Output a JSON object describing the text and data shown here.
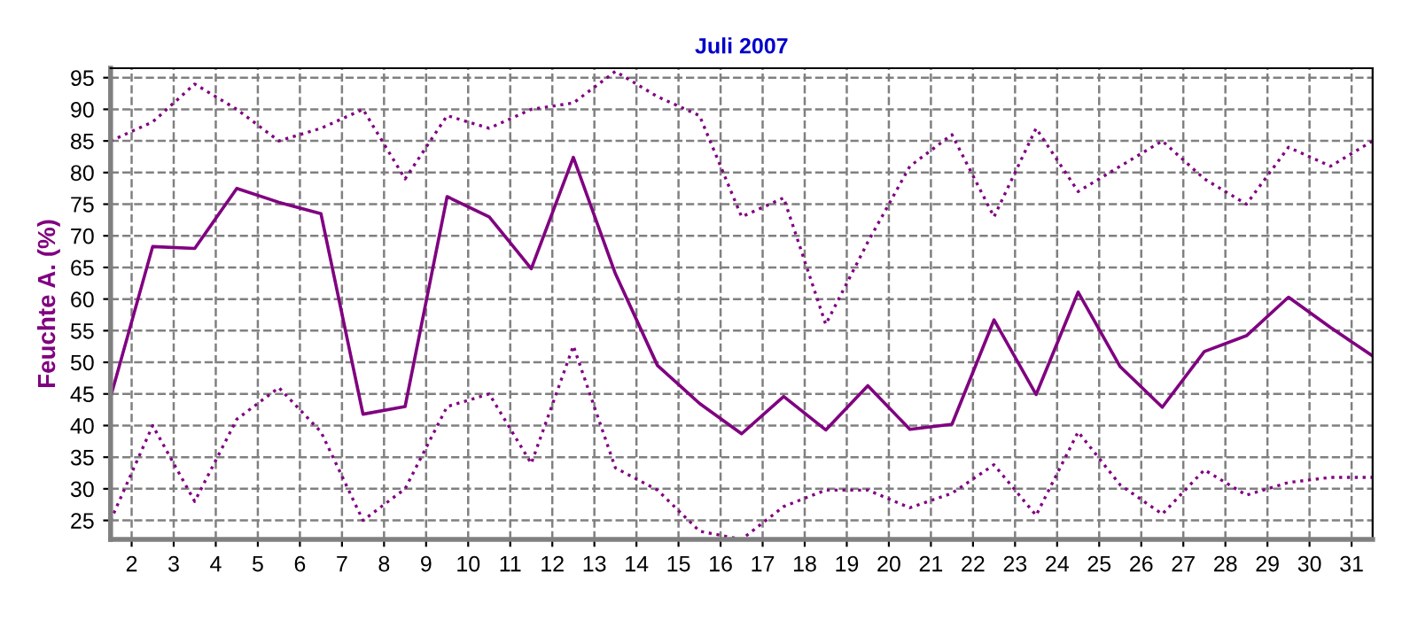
{
  "chart_data": {
    "type": "line",
    "title": "Juli 2007",
    "ylabel": "Feuchte A. (%)",
    "x": [
      1.5,
      2.5,
      3.5,
      4.5,
      5.5,
      6.5,
      7.5,
      8.5,
      9.5,
      10.5,
      11.5,
      12.5,
      13.5,
      14.5,
      15.5,
      16.5,
      17.5,
      18.5,
      19.5,
      20.5,
      21.5,
      22.5,
      23.5,
      24.5,
      25.5,
      26.5,
      27.5,
      28.5,
      29.5,
      30.5,
      31.5
    ],
    "series": [
      {
        "color": "#800080",
        "line_style": "dotted",
        "values": [
          85,
          88,
          94,
          90,
          85,
          87,
          90,
          79,
          89,
          87,
          90,
          91,
          96,
          92,
          89,
          73,
          76,
          56,
          69,
          81,
          86,
          73,
          87,
          77,
          81,
          85,
          79,
          75,
          84,
          81,
          85
        ]
      },
      {
        "color": "#800080",
        "line_style": "solid",
        "values": [
          44.5,
          68.3,
          68,
          77.5,
          75.3,
          73.5,
          41.8,
          43,
          76.2,
          73,
          64.8,
          82.4,
          64,
          49.5,
          43.5,
          38.7,
          44.6,
          39.3,
          46.3,
          39.4,
          40.2,
          56.7,
          44.9,
          61.1,
          49.3,
          42.9,
          51.7,
          54.2,
          60.3,
          55.5,
          51
        ]
      },
      {
        "color": "#800080",
        "line_style": "dotted",
        "values": [
          25,
          40,
          28,
          41,
          46,
          39,
          25,
          30,
          43,
          45,
          34,
          52.6,
          33.3,
          29.8,
          23.3,
          22,
          27.2,
          29.8,
          29.8,
          27,
          29.3,
          33.8,
          25.8,
          39,
          30.6,
          26,
          33,
          29,
          31,
          31.8,
          31.8
        ]
      }
    ],
    "xlim": [
      1.5,
      31.5
    ],
    "ylim": [
      22,
      96.5
    ],
    "xticks": [
      2,
      3,
      4,
      5,
      6,
      7,
      8,
      9,
      10,
      11,
      12,
      13,
      14,
      15,
      16,
      17,
      18,
      19,
      20,
      21,
      22,
      23,
      24,
      25,
      26,
      27,
      28,
      29,
      30,
      31
    ],
    "yticks": [
      25,
      30,
      35,
      40,
      45,
      50,
      55,
      60,
      65,
      70,
      75,
      80,
      85,
      90,
      95
    ],
    "grid": true,
    "marker": "none"
  }
}
